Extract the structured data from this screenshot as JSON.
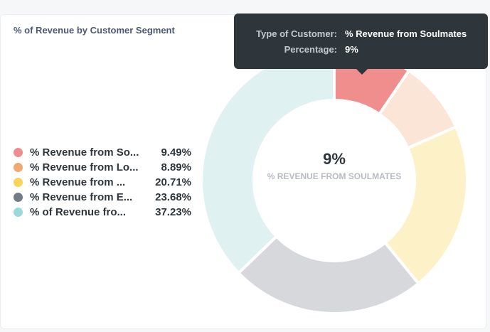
{
  "card": {
    "title": "% of Revenue by Customer Segment"
  },
  "chart_data": {
    "type": "pie",
    "title": "% of Revenue by Customer Segment",
    "categories": [
      "% Revenue from So...",
      "% Revenue from Lo...",
      "% Revenue from ...",
      "% Revenue from E...",
      "% of Revenue fro..."
    ],
    "values": [
      9.49,
      8.89,
      20.71,
      23.68,
      37.23
    ],
    "value_labels": [
      "9.49%",
      "8.89%",
      "20.71%",
      "23.68%",
      "37.23%"
    ],
    "colors": [
      "#ef8c8c",
      "#f9d45c",
      "#f2a86f",
      "#98d9d9",
      "#7172ad"
    ],
    "slice_colors": [
      "#f08e8d",
      "#fbe5d6",
      "#fdf1c8",
      "#d6d8dc",
      "#dff1f1"
    ],
    "legend_colors": [
      "#ef8c8c",
      "#f2a86f",
      "#f9d45c",
      "#727c87",
      "#98d9d9"
    ],
    "legend_position": "left",
    "donut": true,
    "highlighted_index": 0,
    "center_value": "9%",
    "center_label": "% REVENUE FROM SOULMATES"
  },
  "tooltip": {
    "key1": "Type of Customer:",
    "value1": "% Revenue from Soulmates",
    "key2": "Percentage:",
    "value2": "9%"
  }
}
